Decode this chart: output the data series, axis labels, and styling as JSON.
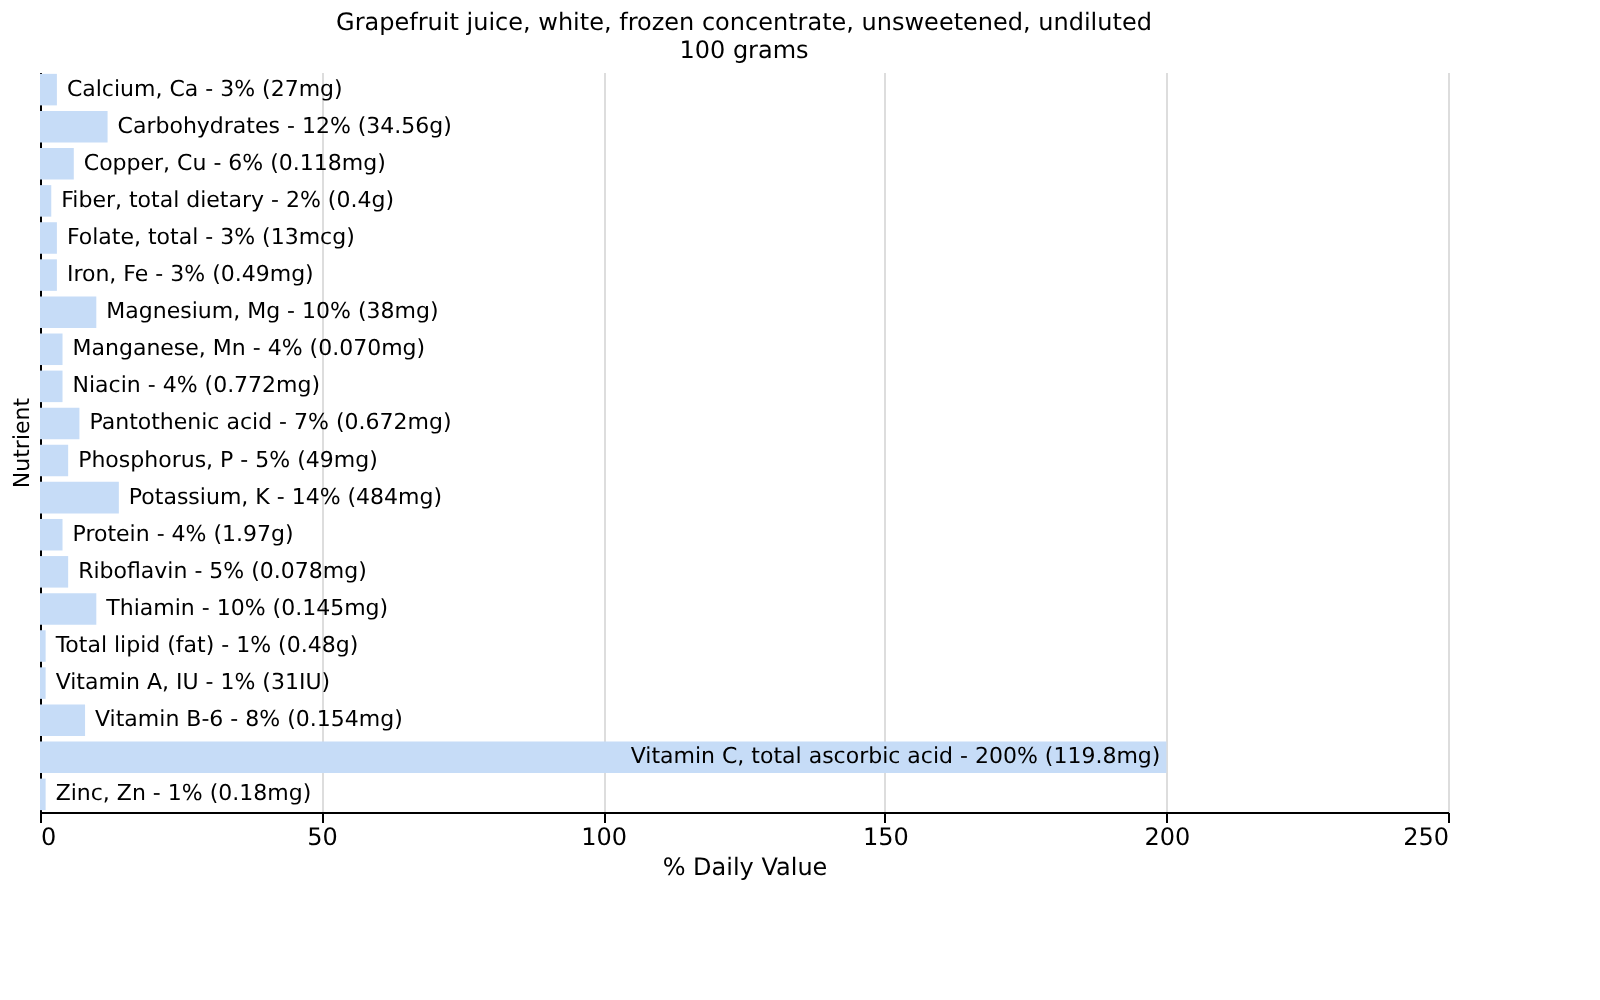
{
  "chart_data": {
    "type": "bar",
    "orientation": "horizontal",
    "title": [
      "Grapefruit juice, white, frozen concentrate, unsweetened, undiluted",
      "100 grams"
    ],
    "xlabel": "% Daily Value",
    "ylabel": "Nutrient",
    "values": [
      3,
      12,
      6,
      2,
      3,
      3,
      10,
      4,
      4,
      7,
      5,
      14,
      4,
      5,
      10,
      1,
      1,
      8,
      200,
      1
    ],
    "categories": [
      "Calcium, Ca - 3% (27mg)",
      "Carbohydrates - 12% (34.56g)",
      "Copper, Cu - 6% (0.118mg)",
      "Fiber, total dietary - 2% (0.4g)",
      "Folate, total - 3% (13mcg)",
      "Iron, Fe - 3% (0.49mg)",
      "Magnesium, Mg - 10% (38mg)",
      "Manganese, Mn - 4% (0.070mg)",
      "Niacin - 4% (0.772mg)",
      "Pantothenic acid - 7% (0.672mg)",
      "Phosphorus, P - 5% (49mg)",
      "Potassium, K - 14% (484mg)",
      "Protein - 4% (1.97g)",
      "Riboflavin - 5% (0.078mg)",
      "Thiamin - 10% (0.145mg)",
      "Total lipid (fat) - 1% (0.48g)",
      "Vitamin A, IU - 1% (31IU)",
      "Vitamin B-6 - 8% (0.154mg)",
      "Vitamin C, total ascorbic acid - 200% (119.8mg)",
      "Zinc, Zn - 1% (0.18mg)"
    ],
    "color": "#c6dcf7",
    "xlim": [
      0,
      250
    ],
    "xticks": [
      0,
      50,
      100,
      150,
      200,
      250
    ],
    "grid": "x",
    "tick_labels": "x"
  }
}
